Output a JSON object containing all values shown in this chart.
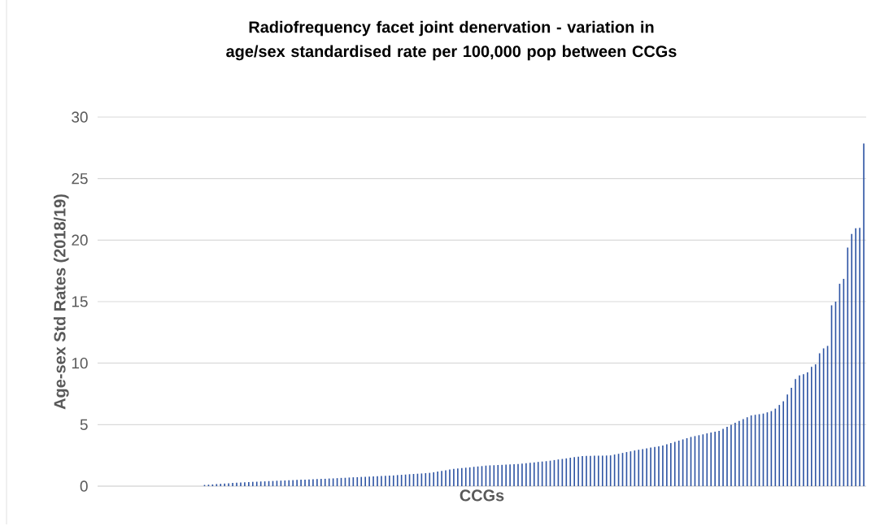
{
  "chart_data": {
    "type": "bar",
    "title": "Radiofrequency facet joint denervation - variation in age/sex standardised rate per 100,000 pop between CCGs",
    "xlabel": "CCGs",
    "ylabel": "Age-sex Std Rates (2018/19)",
    "ylim": [
      0,
      30
    ],
    "yticks": [
      0,
      5,
      10,
      15,
      20,
      25,
      30
    ],
    "grid": "y",
    "color": "#2f55a4",
    "categories": [
      null,
      null,
      null,
      null,
      null,
      null,
      null,
      null,
      null,
      null,
      null,
      null,
      null,
      null,
      null,
      null,
      null,
      null,
      null,
      null,
      null,
      null,
      null,
      null,
      null,
      null,
      null,
      null,
      null,
      null,
      null,
      null,
      null,
      null,
      null,
      null,
      null,
      null,
      null,
      null,
      null,
      null,
      null,
      null,
      null,
      null,
      null,
      null,
      null,
      null,
      null,
      null,
      null,
      null,
      null,
      null,
      null,
      null,
      null,
      null,
      null,
      null,
      null,
      null,
      null,
      null,
      null,
      null,
      null,
      null,
      null,
      null,
      null,
      null,
      null,
      null,
      null,
      null,
      null,
      null,
      null,
      null,
      null,
      null,
      null,
      null,
      null,
      null,
      null,
      null,
      null,
      null,
      null,
      null,
      null,
      null,
      null,
      null,
      null,
      null,
      null,
      null,
      null,
      null,
      null,
      null,
      null,
      null,
      null,
      null,
      null,
      null,
      null,
      null,
      null,
      null,
      null,
      null,
      null,
      null,
      null,
      null,
      null,
      null,
      null,
      null,
      null,
      null,
      null,
      null,
      null,
      null,
      null,
      null,
      null,
      null,
      null,
      null,
      null,
      null,
      null,
      null,
      null,
      null,
      null,
      null,
      null,
      null,
      null,
      null,
      null,
      null,
      null,
      null,
      null,
      null,
      null,
      null,
      null,
      null,
      null,
      null,
      null,
      null,
      null,
      null,
      null,
      null,
      null,
      null,
      null,
      null,
      null,
      null,
      null,
      null,
      null,
      null,
      null,
      null,
      null,
      null,
      null,
      null,
      null,
      null,
      null,
      null,
      null,
      null,
      null
    ],
    "values": [
      0,
      0,
      0,
      0,
      0,
      0,
      0,
      0,
      0,
      0,
      0,
      0,
      0,
      0,
      0,
      0,
      0,
      0,
      0,
      0,
      0,
      0,
      0,
      0,
      0,
      0,
      0.1,
      0.12,
      0.14,
      0.17,
      0.19,
      0.21,
      0.23,
      0.26,
      0.28,
      0.3,
      0.32,
      0.33,
      0.35,
      0.36,
      0.38,
      0.39,
      0.41,
      0.42,
      0.44,
      0.45,
      0.46,
      0.48,
      0.49,
      0.51,
      0.52,
      0.53,
      0.55,
      0.56,
      0.57,
      0.59,
      0.6,
      0.62,
      0.63,
      0.65,
      0.67,
      0.68,
      0.7,
      0.72,
      0.73,
      0.75,
      0.76,
      0.78,
      0.79,
      0.81,
      0.82,
      0.84,
      0.85,
      0.87,
      0.9,
      0.92,
      0.94,
      0.97,
      0.99,
      1.01,
      1.03,
      1.06,
      1.08,
      1.13,
      1.19,
      1.24,
      1.29,
      1.35,
      1.4,
      1.43,
      1.47,
      1.5,
      1.53,
      1.57,
      1.6,
      1.63,
      1.67,
      1.69,
      1.7,
      1.72,
      1.73,
      1.75,
      1.77,
      1.78,
      1.8,
      1.83,
      1.87,
      1.9,
      1.93,
      1.97,
      2.0,
      2.03,
      2.07,
      2.12,
      2.17,
      2.21,
      2.26,
      2.31,
      2.36,
      2.4,
      2.45,
      2.46,
      2.46,
      2.47,
      2.48,
      2.48,
      2.49,
      2.5,
      2.57,
      2.63,
      2.7,
      2.77,
      2.83,
      2.9,
      2.96,
      3.01,
      3.07,
      3.13,
      3.19,
      3.24,
      3.3,
      3.4,
      3.5,
      3.6,
      3.7,
      3.8,
      3.9,
      4.0,
      4.07,
      4.14,
      4.21,
      4.29,
      4.36,
      4.43,
      4.5,
      4.66,
      4.83,
      4.99,
      5.15,
      5.3,
      5.45,
      5.6,
      5.75,
      5.8,
      5.85,
      5.9,
      6.0,
      6.1,
      6.3,
      6.6,
      6.9,
      7.45,
      8.0,
      8.7,
      9.0,
      9.1,
      9.25,
      9.7,
      9.9,
      10.8,
      11.2,
      11.4,
      14.7,
      15.0,
      16.45,
      16.85,
      19.4,
      20.5,
      20.97,
      21.0,
      27.85
    ]
  }
}
